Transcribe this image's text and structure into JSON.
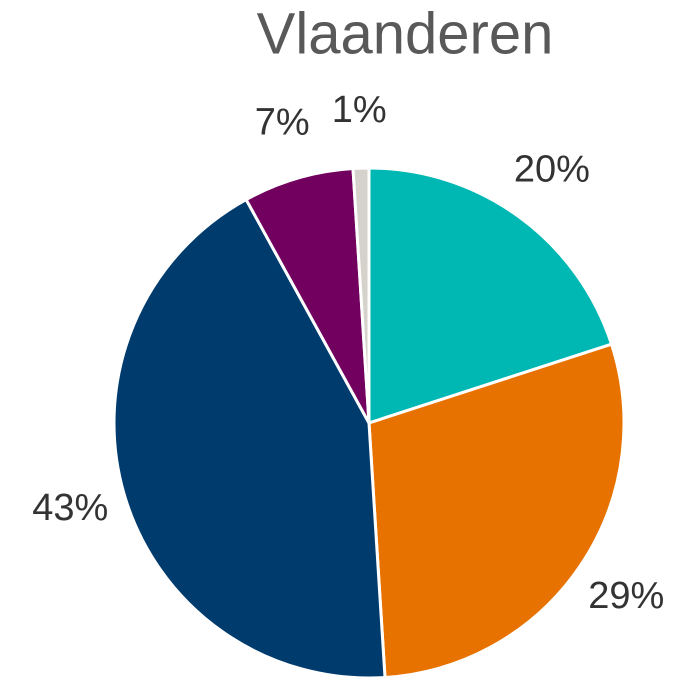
{
  "chart_data": {
    "type": "pie",
    "title": "Vlaanderen",
    "values": [
      20,
      29,
      43,
      7,
      1
    ],
    "value_labels": [
      "20%",
      "29%",
      "43%",
      "7%",
      "1%"
    ],
    "colors": [
      "#00b8b3",
      "#e87200",
      "#003b6e",
      "#72005f",
      "#d5d2cb"
    ]
  }
}
